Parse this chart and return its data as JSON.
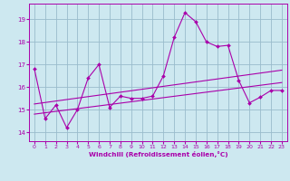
{
  "xlabel": "Windchill (Refroidissement éolien,°C)",
  "background_color": "#cde8f0",
  "line_color": "#aa00aa",
  "grid_color": "#99bbcc",
  "x_ticks": [
    0,
    1,
    2,
    3,
    4,
    5,
    6,
    7,
    8,
    9,
    10,
    11,
    12,
    13,
    14,
    15,
    16,
    17,
    18,
    19,
    20,
    21,
    22,
    23
  ],
  "y_ticks": [
    14,
    15,
    16,
    17,
    18,
    19
  ],
  "ylim": [
    13.6,
    19.7
  ],
  "xlim": [
    -0.5,
    23.5
  ],
  "series1_x": [
    0,
    1,
    2,
    3,
    4,
    5,
    6,
    7,
    8,
    9,
    10,
    11,
    12,
    13,
    14,
    15,
    16,
    17,
    18,
    19,
    20,
    21,
    22,
    23
  ],
  "series1_y": [
    16.8,
    14.6,
    15.2,
    14.2,
    15.0,
    16.4,
    17.0,
    15.1,
    15.6,
    15.5,
    15.5,
    15.6,
    16.5,
    18.2,
    19.3,
    18.9,
    18.0,
    17.8,
    17.85,
    16.3,
    15.3,
    15.55,
    15.85,
    15.85
  ],
  "series2_x": [
    0,
    23
  ],
  "series2_y": [
    14.8,
    16.2
  ],
  "series3_x": [
    0,
    23
  ],
  "series3_y": [
    15.25,
    16.75
  ]
}
